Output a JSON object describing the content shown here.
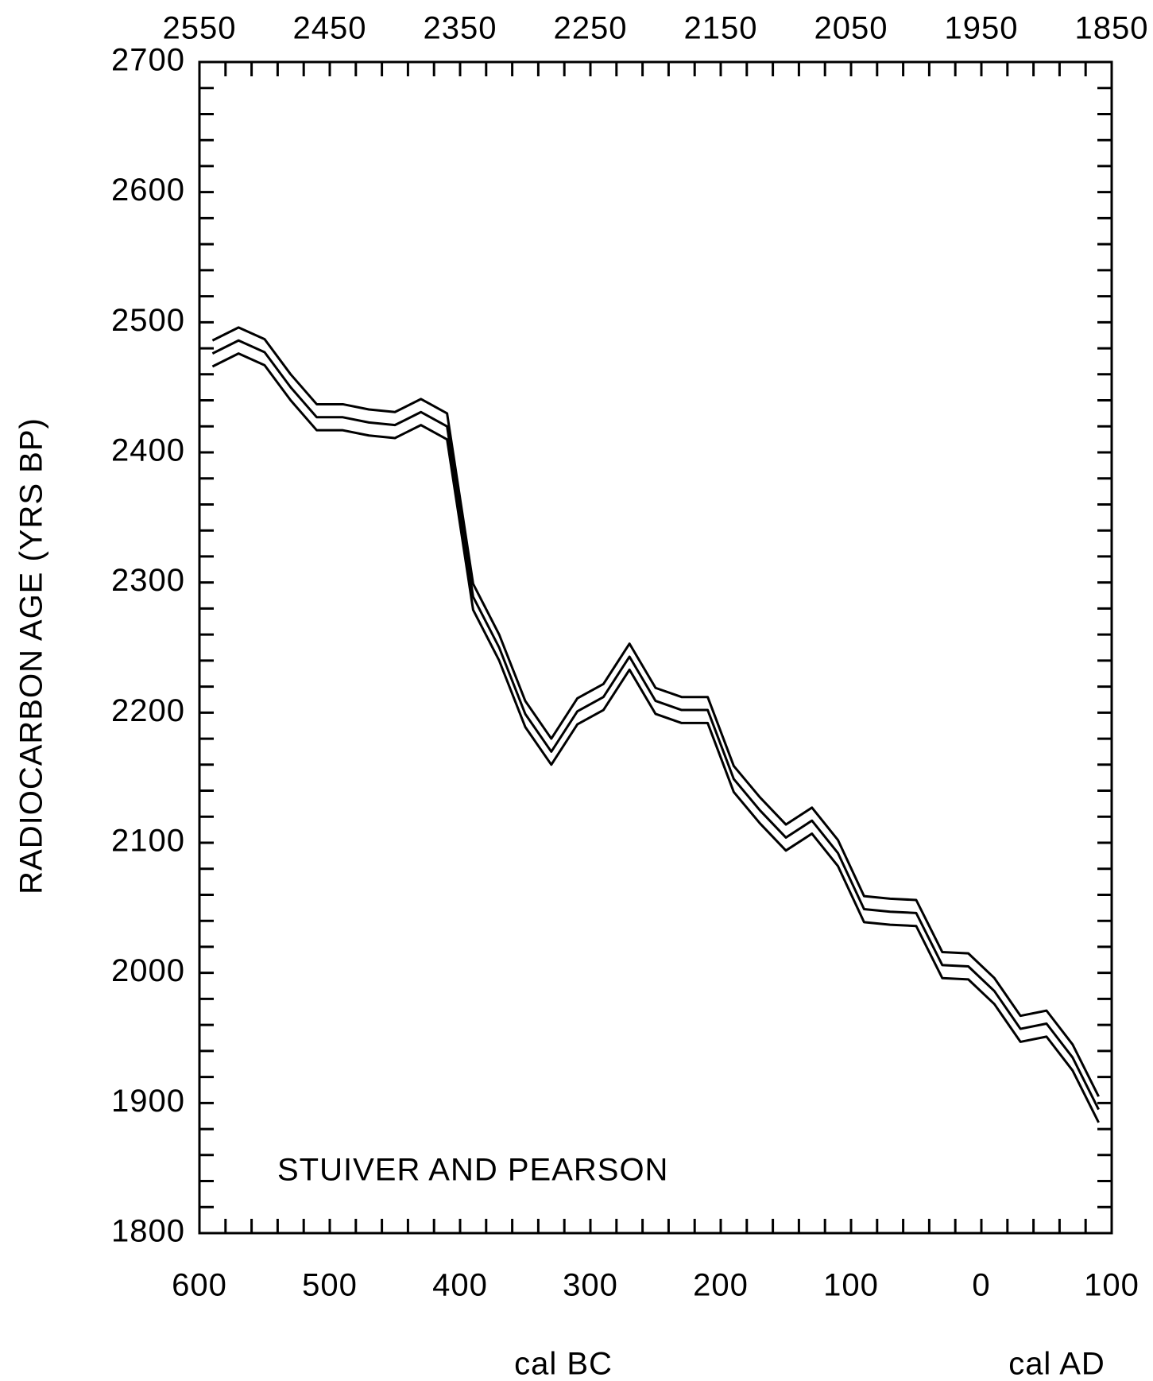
{
  "chart_data": {
    "type": "line",
    "ylabel": "RADIOCARBON AGE (YRS BP)",
    "xlabel_left": "cal BC",
    "xlabel_right": "cal AD",
    "annotation": "STUIVER AND PEARSON",
    "x": [
      -590,
      -570,
      -550,
      -530,
      -510,
      -490,
      -470,
      -450,
      -430,
      -410,
      -390,
      -370,
      -350,
      -330,
      -310,
      -290,
      -270,
      -250,
      -230,
      -210,
      -190,
      -170,
      -150,
      -130,
      -110,
      -90,
      -70,
      -50,
      -30,
      -10,
      10,
      30,
      50,
      70,
      90
    ],
    "series": [
      {
        "color": "#000000",
        "values": [
          2486,
          2496,
          2487,
          2460,
          2437,
          2437,
          2433,
          2431,
          2441,
          2430,
          2299,
          2260,
          2209,
          2180,
          2211,
          2222,
          2253,
          2219,
          2212,
          2212,
          2159,
          2135,
          2114,
          2127,
          2102,
          2059,
          2057,
          2056,
          2016,
          2015,
          1996,
          1967,
          1971,
          1945,
          1905
        ]
      },
      {
        "color": "#000000",
        "values": [
          2476,
          2486,
          2477,
          2450,
          2427,
          2427,
          2423,
          2421,
          2431,
          2420,
          2289,
          2250,
          2199,
          2170,
          2201,
          2212,
          2243,
          2209,
          2202,
          2202,
          2149,
          2125,
          2104,
          2117,
          2092,
          2049,
          2047,
          2046,
          2006,
          2005,
          1986,
          1957,
          1961,
          1935,
          1895
        ]
      },
      {
        "color": "#000000",
        "values": [
          2466,
          2476,
          2467,
          2440,
          2417,
          2417,
          2413,
          2411,
          2421,
          2410,
          2279,
          2240,
          2189,
          2160,
          2191,
          2202,
          2233,
          2199,
          2192,
          2192,
          2139,
          2115,
          2094,
          2107,
          2082,
          2039,
          2037,
          2036,
          1996,
          1995,
          1976,
          1947,
          1951,
          1925,
          1885
        ]
      }
    ],
    "xlim": [
      -600,
      100
    ],
    "xticks": [
      {
        "value": -600,
        "label": "600"
      },
      {
        "value": -500,
        "label": "500"
      },
      {
        "value": -400,
        "label": "400"
      },
      {
        "value": -300,
        "label": "300"
      },
      {
        "value": -200,
        "label": "200"
      },
      {
        "value": -100,
        "label": "100"
      },
      0,
      100
    ],
    "xminorticks": [
      -580,
      -560,
      -540,
      -520,
      -480,
      -460,
      -440,
      -420,
      -380,
      -360,
      -340,
      -320,
      -280,
      -260,
      -240,
      -220,
      -180,
      -160,
      -140,
      -120,
      -80,
      -60,
      -40,
      -20,
      20,
      40,
      60,
      80
    ],
    "x2lim": [
      2550,
      1850
    ],
    "x2ticks": [
      2550,
      2450,
      2350,
      2250,
      2150,
      2050,
      1950,
      1850
    ],
    "ylim": [
      1800,
      2700
    ],
    "yticks": [
      1800,
      1900,
      2000,
      2100,
      2200,
      2300,
      2400,
      2500,
      2600,
      2700
    ],
    "yminorticks": [
      1820,
      1840,
      1860,
      1880,
      1920,
      1940,
      1960,
      1980,
      2020,
      2040,
      2060,
      2080,
      2120,
      2140,
      2160,
      2180,
      2220,
      2240,
      2260,
      2280,
      2320,
      2340,
      2360,
      2380,
      2420,
      2440,
      2460,
      2480,
      2520,
      2540,
      2560,
      2580,
      2620,
      2640,
      2660,
      2680
    ],
    "grid": false
  }
}
